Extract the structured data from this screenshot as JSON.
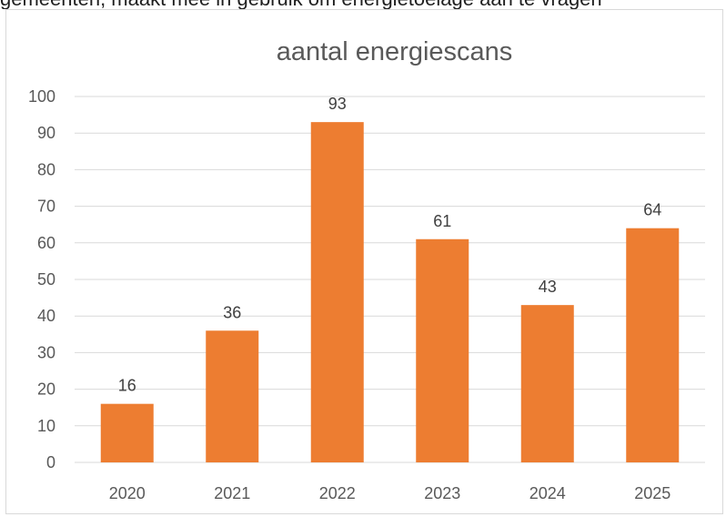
{
  "partial_text_above": "gemeenten, maakt mee in gebruik om energietoelage aan te vragen",
  "chart_data": {
    "type": "bar",
    "title": "aantal energiescans",
    "categories": [
      "2020",
      "2021",
      "2022",
      "2023",
      "2024",
      "2025"
    ],
    "values": [
      16,
      36,
      93,
      61,
      43,
      64
    ],
    "data_labels": [
      "16",
      "36",
      "93",
      "61",
      "43",
      "64"
    ],
    "y_ticks": [
      "0",
      "10",
      "20",
      "30",
      "40",
      "50",
      "60",
      "70",
      "80",
      "90",
      "100"
    ],
    "ylim": [
      0,
      100
    ],
    "xlabel": "",
    "ylabel": "",
    "grid": true,
    "legend": "none",
    "bar_color": "#ED7D31",
    "grid_color": "#D9D9D9"
  }
}
